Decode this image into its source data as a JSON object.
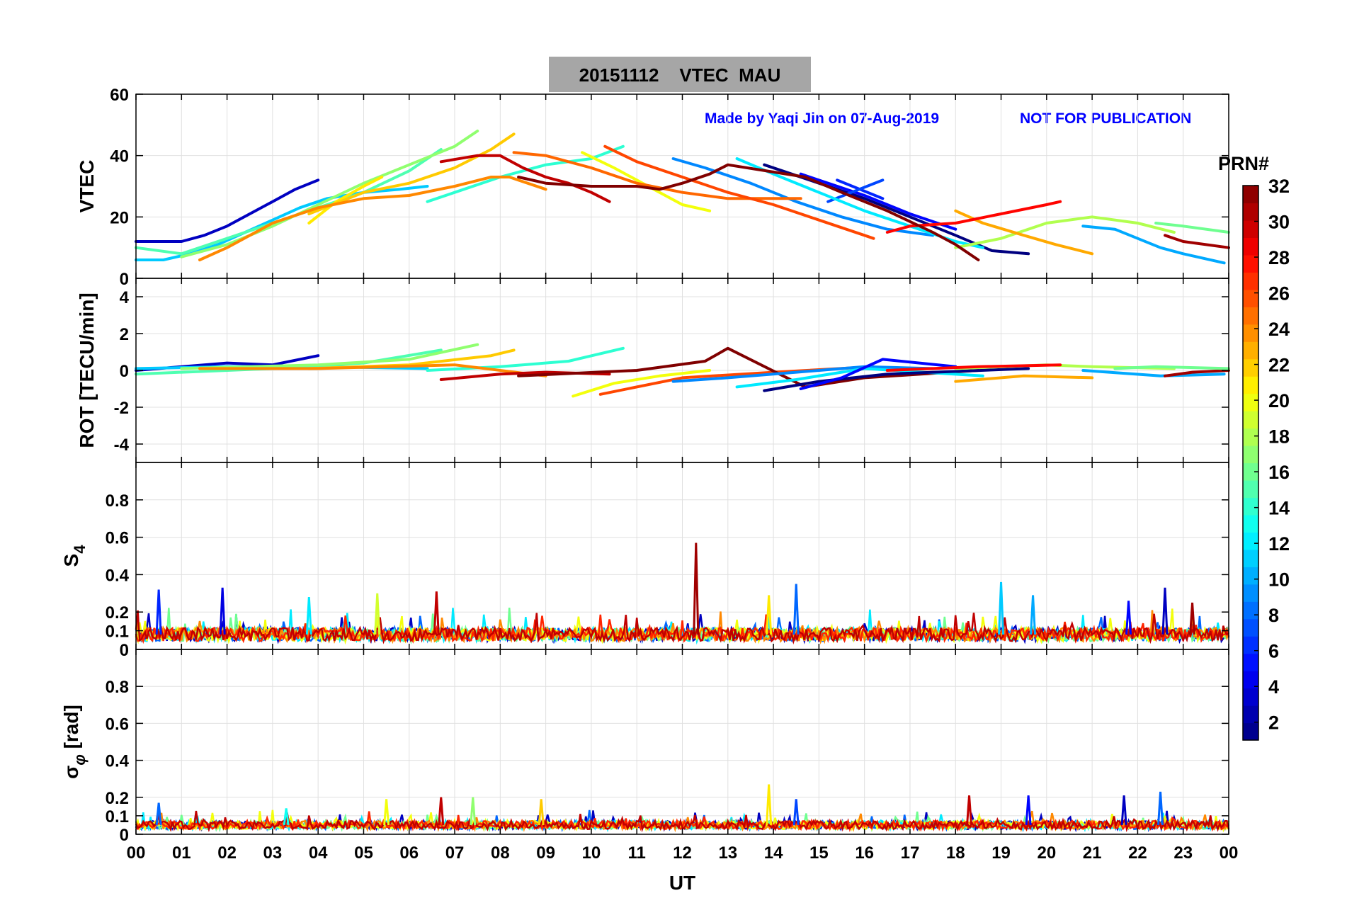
{
  "title": {
    "date": "20151112",
    "quantity": "VTEC",
    "station": "MAU",
    "full": "20151112    VTEC  MAU"
  },
  "credit": {
    "made_by": "Made by Yaqi Jin on 07-Aug-2019",
    "notice": "NOT FOR PUBLICATION"
  },
  "colors": {
    "credit_text": "#0000ff",
    "title_box": "#a6a6a6",
    "grid": "#e0e0e0"
  },
  "chart_data": [
    {
      "type": "line",
      "panel": "vtec",
      "title": "20151112    VTEC  MAU",
      "xlabel": "",
      "ylabel": "VTEC",
      "xlim": [
        0,
        24
      ],
      "ylim": [
        0,
        60
      ],
      "yticks": [
        0,
        20,
        40,
        60
      ],
      "yticklabels": [
        "0",
        "20",
        "40",
        "60"
      ],
      "grid": true,
      "colormap_by": "PRN",
      "series": [
        {
          "prn": 1,
          "x": [
            13.8,
            15.0,
            16.0,
            17.0,
            18.0,
            18.8,
            19.6
          ],
          "y": [
            37,
            31,
            26,
            20,
            14,
            9,
            8
          ]
        },
        {
          "prn": 3,
          "x": [
            0.0,
            0.6,
            1.0,
            1.5,
            2.0,
            2.5,
            3.0,
            3.5,
            4.0
          ],
          "y": [
            12,
            12,
            12,
            14,
            17,
            21,
            25,
            29,
            32
          ]
        },
        {
          "prn": 5,
          "x": [
            14.6,
            15.2,
            16.0,
            17.0,
            18.0
          ],
          "y": [
            34,
            31,
            27,
            21,
            16
          ]
        },
        {
          "prn": 6,
          "x": [
            15.4,
            16.4
          ],
          "y": [
            32,
            26
          ]
        },
        {
          "prn": 7,
          "x": [
            15.2,
            16.4
          ],
          "y": [
            25,
            32
          ]
        },
        {
          "prn": 9,
          "x": [
            11.8,
            12.5,
            13.5,
            14.5,
            15.5,
            16.5,
            17.5
          ],
          "y": [
            39,
            36,
            31,
            25,
            20,
            16,
            14
          ]
        },
        {
          "prn": 10,
          "x": [
            20.8,
            21.5,
            22.5,
            23.0,
            23.9
          ],
          "y": [
            17,
            16,
            10,
            8,
            5
          ]
        },
        {
          "prn": 11,
          "x": [
            0.0,
            0.6,
            1.2,
            1.8,
            2.4,
            3.0,
            3.6,
            4.2,
            5.0,
            5.8,
            6.4
          ],
          "y": [
            6,
            6,
            8,
            11,
            15,
            19,
            23,
            26,
            28,
            29,
            30
          ]
        },
        {
          "prn": 12,
          "x": [
            13.2,
            14.0,
            15.0,
            16.0,
            17.0,
            18.0,
            18.6
          ],
          "y": [
            39,
            34,
            28,
            22,
            17,
            12,
            10
          ]
        },
        {
          "prn": 14,
          "x": [
            6.4,
            7.0,
            8.0,
            9.0,
            10.0,
            10.7
          ],
          "y": [
            25,
            28,
            33,
            37,
            39,
            43
          ]
        },
        {
          "prn": 15,
          "x": [
            0.0,
            1.0,
            2.0,
            3.0,
            4.0,
            5.0,
            6.0,
            6.7
          ],
          "y": [
            10,
            8,
            13,
            18,
            23,
            28,
            35,
            42
          ]
        },
        {
          "prn": 16,
          "x": [
            22.4,
            23.0,
            24.0
          ],
          "y": [
            18,
            17,
            15
          ]
        },
        {
          "prn": 17,
          "x": [
            1.0,
            2.0,
            3.0,
            4.0,
            5.0,
            6.0,
            7.0,
            7.5
          ],
          "y": [
            7,
            11,
            17,
            24,
            31,
            37,
            43,
            48
          ]
        },
        {
          "prn": 18,
          "x": [
            18.0,
            19.0,
            20.0,
            21.0,
            22.0,
            22.8
          ],
          "y": [
            10,
            13,
            18,
            20,
            18,
            15
          ]
        },
        {
          "prn": 20,
          "x": [
            9.8,
            10.5,
            11.0,
            11.5,
            12.0,
            12.6
          ],
          "y": [
            41,
            36,
            32,
            28,
            24,
            22
          ]
        },
        {
          "prn": 21,
          "x": [
            3.8,
            4.4,
            5.0,
            5.4
          ],
          "y": [
            18,
            25,
            30,
            33
          ]
        },
        {
          "prn": 22,
          "x": [
            3.8,
            5.0,
            6.0,
            7.0,
            7.8,
            8.3
          ],
          "y": [
            21,
            28,
            31,
            36,
            42,
            47
          ]
        },
        {
          "prn": 23,
          "x": [
            18.0,
            18.6,
            19.5,
            20.2,
            21.0
          ],
          "y": [
            22,
            18,
            14,
            11,
            8
          ]
        },
        {
          "prn": 24,
          "x": [
            1.4,
            2.0,
            3.0,
            4.0,
            5.0,
            6.0,
            7.0,
            7.8,
            8.2,
            9.0
          ],
          "y": [
            6,
            10,
            18,
            23,
            26,
            27,
            30,
            33,
            33,
            29
          ]
        },
        {
          "prn": 25,
          "x": [
            8.3,
            9.0,
            10.0,
            11.0,
            12.0,
            13.0,
            14.0,
            14.6
          ],
          "y": [
            41,
            40,
            36,
            31,
            28,
            26,
            26,
            26
          ]
        },
        {
          "prn": 26,
          "x": [
            10.3,
            11.0,
            12.0,
            13.0,
            14.0,
            15.0,
            16.0,
            16.2
          ],
          "y": [
            43,
            38,
            33,
            28,
            24,
            19,
            14,
            13
          ]
        },
        {
          "prn": 28,
          "x": [
            16.5,
            17.0,
            18.0,
            19.0,
            20.0,
            20.3
          ],
          "y": [
            15,
            17,
            18,
            21,
            24,
            25
          ]
        },
        {
          "prn": 30,
          "x": [
            6.7,
            7.5,
            8.0,
            8.5,
            9.0,
            9.5,
            10.0,
            10.4
          ],
          "y": [
            38,
            40,
            40,
            36,
            33,
            31,
            28,
            25
          ]
        },
        {
          "prn": 31,
          "x": [
            22.6,
            23.0,
            24.0
          ],
          "y": [
            14,
            12,
            10
          ]
        },
        {
          "prn": 32,
          "x": [
            8.4,
            9.0,
            10.0,
            11.0,
            11.5,
            12.0,
            12.6,
            13.0,
            14.7,
            15.5,
            16.5,
            17.5,
            18.0,
            18.5
          ],
          "y": [
            33,
            31,
            30,
            30,
            29,
            31,
            34,
            37,
            33,
            28,
            22,
            15,
            11,
            6
          ]
        }
      ]
    },
    {
      "type": "line",
      "panel": "rot",
      "xlabel": "",
      "ylabel": "ROT [TECU/min]",
      "xlim": [
        0,
        24
      ],
      "ylim": [
        -5,
        5
      ],
      "yticks": [
        -4,
        -2,
        0,
        2,
        4
      ],
      "yticklabels": [
        "-4",
        "-2",
        "0",
        "2",
        "4"
      ],
      "grid": true,
      "series": [
        {
          "prn": 3,
          "x": [
            0.0,
            2.0,
            3.0,
            4.0
          ],
          "y": [
            0.0,
            0.4,
            0.3,
            0.8
          ]
        },
        {
          "prn": 11,
          "x": [
            0.0,
            2.0,
            4.0,
            6.4
          ],
          "y": [
            0.1,
            0.2,
            0.2,
            0.1
          ]
        },
        {
          "prn": 14,
          "x": [
            6.4,
            8.0,
            9.5,
            10.7
          ],
          "y": [
            0.0,
            0.2,
            0.5,
            1.2
          ]
        },
        {
          "prn": 15,
          "x": [
            0.0,
            3.0,
            5.0,
            6.7
          ],
          "y": [
            -0.2,
            0.1,
            0.4,
            1.1
          ]
        },
        {
          "prn": 17,
          "x": [
            1.0,
            4.0,
            6.0,
            7.5
          ],
          "y": [
            0.1,
            0.3,
            0.6,
            1.4
          ]
        },
        {
          "prn": 22,
          "x": [
            3.8,
            6.0,
            7.8,
            8.3
          ],
          "y": [
            0.1,
            0.3,
            0.8,
            1.1
          ]
        },
        {
          "prn": 24,
          "x": [
            1.4,
            4.0,
            7.0,
            9.0
          ],
          "y": [
            0.1,
            0.1,
            0.3,
            -0.3
          ]
        },
        {
          "prn": 20,
          "x": [
            9.6,
            10.5,
            11.5,
            12.6
          ],
          "y": [
            -1.4,
            -0.7,
            -0.3,
            0.0
          ]
        },
        {
          "prn": 26,
          "x": [
            10.2,
            12.0,
            14.0,
            16.2
          ],
          "y": [
            -1.3,
            -0.4,
            -0.1,
            0.2
          ]
        },
        {
          "prn": 30,
          "x": [
            6.7,
            8.0,
            9.0,
            10.4
          ],
          "y": [
            -0.5,
            -0.2,
            -0.1,
            -0.2
          ]
        },
        {
          "prn": 32,
          "x": [
            8.4,
            11.0,
            12.5,
            13.0,
            14.7,
            16.0,
            18.5
          ],
          "y": [
            -0.3,
            0.0,
            0.5,
            1.2,
            -0.9,
            -0.4,
            0.0
          ]
        },
        {
          "prn": 9,
          "x": [
            11.8,
            13.0,
            14.5,
            16.0,
            17.5
          ],
          "y": [
            -0.6,
            -0.4,
            -0.1,
            0.2,
            0.1
          ]
        },
        {
          "prn": 12,
          "x": [
            13.2,
            14.5,
            16.0,
            18.6
          ],
          "y": [
            -0.9,
            -0.5,
            0.1,
            -0.3
          ]
        },
        {
          "prn": 1,
          "x": [
            13.8,
            15.0,
            16.5,
            19.6
          ],
          "y": [
            -1.1,
            -0.6,
            -0.2,
            0.1
          ]
        },
        {
          "prn": 5,
          "x": [
            14.6,
            15.5,
            16.4,
            18.0
          ],
          "y": [
            -1.0,
            -0.4,
            0.6,
            0.2
          ]
        },
        {
          "prn": 18,
          "x": [
            18.0,
            20.0,
            21.0,
            22.8
          ],
          "y": [
            0.1,
            0.3,
            0.2,
            0.1
          ]
        },
        {
          "prn": 23,
          "x": [
            18.0,
            19.5,
            21.0
          ],
          "y": [
            -0.6,
            -0.3,
            -0.4
          ]
        },
        {
          "prn": 28,
          "x": [
            16.5,
            18.5,
            20.3
          ],
          "y": [
            0.0,
            0.2,
            0.3
          ]
        },
        {
          "prn": 10,
          "x": [
            20.8,
            22.5,
            23.9
          ],
          "y": [
            0.0,
            -0.3,
            -0.2
          ]
        },
        {
          "prn": 31,
          "x": [
            22.6,
            23.2,
            24.0
          ],
          "y": [
            -0.3,
            -0.1,
            0.0
          ]
        },
        {
          "prn": 16,
          "x": [
            21.5,
            22.4,
            24.0
          ],
          "y": [
            0.1,
            0.2,
            0.1
          ]
        }
      ]
    },
    {
      "type": "line",
      "panel": "s4",
      "xlabel": "",
      "ylabel": "S4",
      "ylabel_main": "S",
      "ylabel_sub": "4",
      "xlim": [
        0,
        24
      ],
      "ylim": [
        0,
        1
      ],
      "yticks": [
        0,
        0.1,
        0.2,
        0.4,
        0.6,
        0.8
      ],
      "yticklabels": [
        "0",
        "0.1",
        "0.2",
        "0.4",
        "0.6",
        "0.8"
      ],
      "grid": true,
      "baseline": 0.08,
      "spikes": [
        {
          "x": 0.5,
          "y": 0.32,
          "prn": 6
        },
        {
          "x": 1.9,
          "y": 0.33,
          "prn": 4
        },
        {
          "x": 3.8,
          "y": 0.28,
          "prn": 12
        },
        {
          "x": 5.3,
          "y": 0.3,
          "prn": 19
        },
        {
          "x": 6.6,
          "y": 0.31,
          "prn": 30
        },
        {
          "x": 12.3,
          "y": 0.57,
          "prn": 31
        },
        {
          "x": 13.9,
          "y": 0.29,
          "prn": 21
        },
        {
          "x": 14.5,
          "y": 0.35,
          "prn": 8
        },
        {
          "x": 19.0,
          "y": 0.36,
          "prn": 11
        },
        {
          "x": 19.7,
          "y": 0.29,
          "prn": 10
        },
        {
          "x": 21.8,
          "y": 0.26,
          "prn": 5
        },
        {
          "x": 22.6,
          "y": 0.33,
          "prn": 3
        },
        {
          "x": 23.2,
          "y": 0.25,
          "prn": 31
        }
      ]
    },
    {
      "type": "line",
      "panel": "sigma_phi",
      "xlabel": "UT",
      "ylabel": "σφ [rad]",
      "ylabel_main": "σ",
      "ylabel_sub": "φ",
      "ylabel_unit": "[rad]",
      "xlim": [
        0,
        24
      ],
      "ylim": [
        0,
        1
      ],
      "yticks": [
        0,
        0.1,
        0.2,
        0.4,
        0.6,
        0.8
      ],
      "yticklabels": [
        "0",
        "0.1",
        "0.2",
        "0.4",
        "0.6",
        "0.8"
      ],
      "xticks": [
        0,
        1,
        2,
        3,
        4,
        5,
        6,
        7,
        8,
        9,
        10,
        11,
        12,
        13,
        14,
        15,
        16,
        17,
        18,
        19,
        20,
        21,
        22,
        23,
        24
      ],
      "xticklabels": [
        "00",
        "01",
        "02",
        "03",
        "04",
        "05",
        "06",
        "07",
        "08",
        "09",
        "10",
        "11",
        "12",
        "13",
        "14",
        "15",
        "16",
        "17",
        "18",
        "19",
        "20",
        "21",
        "22",
        "23",
        "00"
      ],
      "grid": true,
      "baseline": 0.05,
      "spikes": [
        {
          "x": 0.5,
          "y": 0.17,
          "prn": 8
        },
        {
          "x": 3.3,
          "y": 0.14,
          "prn": 13
        },
        {
          "x": 5.5,
          "y": 0.19,
          "prn": 20
        },
        {
          "x": 6.7,
          "y": 0.2,
          "prn": 30
        },
        {
          "x": 7.4,
          "y": 0.2,
          "prn": 17
        },
        {
          "x": 8.9,
          "y": 0.19,
          "prn": 22
        },
        {
          "x": 13.9,
          "y": 0.27,
          "prn": 21
        },
        {
          "x": 14.5,
          "y": 0.19,
          "prn": 7
        },
        {
          "x": 18.3,
          "y": 0.21,
          "prn": 30
        },
        {
          "x": 19.6,
          "y": 0.21,
          "prn": 5
        },
        {
          "x": 21.7,
          "y": 0.21,
          "prn": 3
        },
        {
          "x": 22.5,
          "y": 0.23,
          "prn": 8
        }
      ]
    }
  ],
  "colorbar": {
    "label": "PRN#",
    "min": 1,
    "max": 32,
    "ticks": [
      2,
      4,
      6,
      8,
      10,
      12,
      14,
      16,
      18,
      20,
      22,
      24,
      26,
      28,
      30,
      32
    ],
    "ticklabels": [
      "2",
      "4",
      "6",
      "8",
      "10",
      "12",
      "14",
      "16",
      "18",
      "20",
      "22",
      "24",
      "26",
      "28",
      "30",
      "32"
    ],
    "colormap": "jet"
  }
}
